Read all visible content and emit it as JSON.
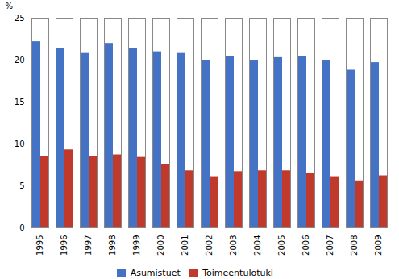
{
  "chart_data": {
    "type": "bar",
    "categories": [
      1995,
      1996,
      1997,
      1998,
      1999,
      2000,
      2001,
      2002,
      2003,
      2004,
      2005,
      2006,
      2007,
      2008,
      2009
    ],
    "series": [
      {
        "name": "Asumistuet",
        "color": "#4472C4",
        "values": [
          22.2,
          21.4,
          20.8,
          22.0,
          21.4,
          21.0,
          20.8,
          20.0,
          20.4,
          19.9,
          20.3,
          20.4,
          19.9,
          18.8,
          19.7
        ]
      },
      {
        "name": "Toimeentulotuki",
        "color": "#C0392B",
        "values": [
          8.5,
          9.3,
          8.5,
          8.7,
          8.4,
          7.5,
          6.8,
          6.1,
          6.7,
          6.8,
          6.8,
          6.5,
          6.1,
          5.6,
          6.2
        ]
      }
    ],
    "ylabel": "%",
    "ylim": [
      0,
      25
    ],
    "yticks": [
      0,
      5,
      10,
      15,
      20,
      25
    ],
    "grid": true,
    "legend": "bottom"
  }
}
